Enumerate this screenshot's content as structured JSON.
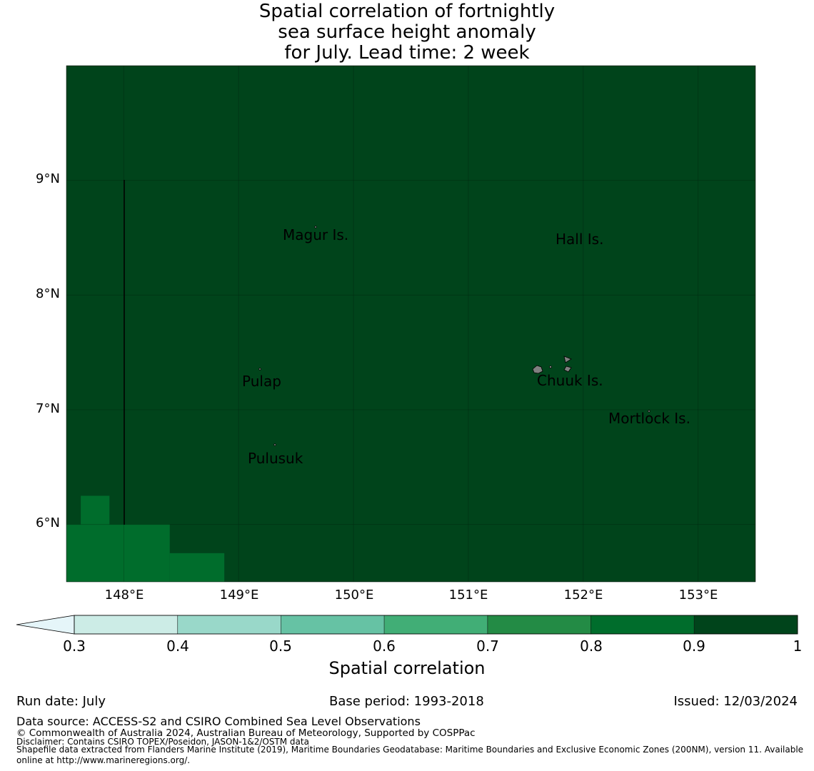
{
  "title": {
    "line1": "Spatial correlation of fortnightly",
    "line2": "sea surface height anomaly",
    "line3": "for July. Lead time: 2 week"
  },
  "map": {
    "lat_labels": [
      "9°N",
      "8°N",
      "7°N",
      "6°N"
    ],
    "lon_labels": [
      "148°E",
      "149°E",
      "150°E",
      "151°E",
      "152°E",
      "153°E"
    ],
    "extent": {
      "lon": [
        147.5,
        153.5
      ],
      "lat": [
        5.5,
        10.0
      ]
    },
    "background_color": "#00441b",
    "places": [
      {
        "name": "Magur Is.",
        "lon": 149.6,
        "lat": 8.55
      },
      {
        "name": "Hall Is.",
        "lon": 151.85,
        "lat": 8.5
      },
      {
        "name": "Pulap",
        "lon": 149.2,
        "lat": 7.25
      },
      {
        "name": "Chuuk Is.",
        "lon": 151.85,
        "lat": 7.25
      },
      {
        "name": "Mortlock Is.",
        "lon": 152.6,
        "lat": 6.95
      },
      {
        "name": "Pulusuk",
        "lon": 149.35,
        "lat": 6.6
      }
    ],
    "cells": [
      {
        "lon0": 147.5,
        "lon1": 148.4,
        "lat0": 5.5,
        "lat1": 6.0,
        "value": 0.85
      },
      {
        "lon0": 147.625,
        "lon1": 147.875,
        "lat0": 6.0,
        "lat1": 6.25,
        "value": 0.85
      },
      {
        "lon0": 148.4,
        "lon1": 148.875,
        "lat0": 5.5,
        "lat1": 5.75,
        "value": 0.85
      }
    ]
  },
  "colorbar": {
    "ticks": [
      "0.3",
      "0.4",
      "0.5",
      "0.6",
      "0.7",
      "0.8",
      "0.9",
      "1"
    ],
    "colors": [
      "#ccece6",
      "#99d8c9",
      "#66c2a4",
      "#41ae76",
      "#238b45",
      "#006d2c",
      "#00441b"
    ],
    "extend_color": "#e5f5f9",
    "label": "Spatial correlation"
  },
  "footer": {
    "run_date": "Run date: July",
    "base_period": "Base period: 1993-2018",
    "issued": "Issued: 12/03/2024",
    "data_source": "Data source: ACCESS-S2 and CSIRO Combined Sea Level Observations",
    "copyright": "© Commonwealth of Australia 2024, Australian Bureau of Meteorology, Supported by COSPPac",
    "disclaimer": "Disclaimer: Contains CSIRO TOPEX/Poseidon, JASON-1&2/OSTM data",
    "shapefile_1": "Shapefile data extracted from Flanders Marine Institute (2019), Maritime Boundaries Geodatabase: Maritime Boundaries and Exclusive Economic Zones (200NM), version 11. Available",
    "shapefile_2": "online at http://www.marineregions.org/."
  }
}
